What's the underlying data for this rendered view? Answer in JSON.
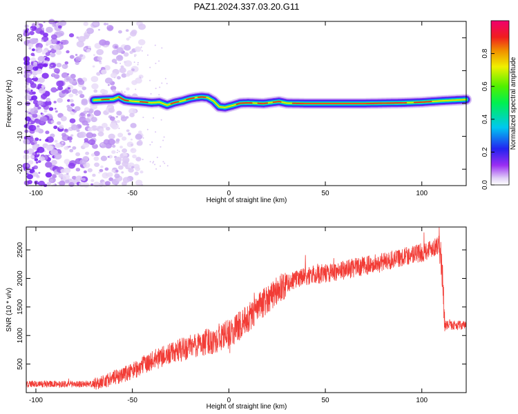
{
  "title": "PAZ1.2024.337.03.20.G11",
  "chart_data": [
    {
      "type": "heatmap",
      "xlabel": "Height of straight line (km)",
      "ylabel": "Frequency (Hz)",
      "xlim": [
        -105,
        123
      ],
      "ylim": [
        -25,
        25
      ],
      "xticks": [
        -100,
        -50,
        0,
        50,
        100
      ],
      "yticks": [
        -20,
        -10,
        0,
        10,
        20
      ],
      "grid": false,
      "colorbar": {
        "label": "Normalized spectral amplitude",
        "range": [
          0,
          1
        ],
        "ticks": [
          0.0,
          0.2,
          0.4,
          0.6,
          0.8
        ],
        "tick_labels": [
          "0.0",
          "0.2",
          "0.4",
          "0.6",
          "0.8"
        ],
        "colormap": "rainbow (white-violet-blue-cyan-green-yellow-orange-red-magenta)"
      },
      "ridge": {
        "x": [
          -70,
          -65,
          -60,
          -57,
          -54,
          -50,
          -45,
          -40,
          -36,
          -32,
          -28,
          -24,
          -20,
          -17,
          -14,
          -11,
          -8,
          -5,
          -2,
          2,
          6,
          10,
          14,
          18,
          22,
          26,
          30,
          40,
          50,
          60,
          70,
          80,
          90,
          100,
          110,
          123
        ],
        "freq": [
          1.0,
          1.2,
          1.3,
          2.0,
          1.0,
          0.7,
          0.5,
          0.2,
          0.4,
          -0.5,
          0.3,
          0.8,
          1.5,
          1.8,
          2.0,
          1.8,
          0.8,
          -1.0,
          -1.2,
          -0.6,
          0.1,
          0.2,
          0.1,
          0.0,
          0.3,
          0.6,
          0.1,
          0.0,
          0.0,
          0.0,
          0.0,
          0.1,
          0.2,
          0.4,
          0.8,
          1.2
        ]
      },
      "noise_region_x": [
        -105,
        -55
      ]
    },
    {
      "type": "line",
      "xlabel": "Height of straight line (km)",
      "ylabel": "SNR (10 * v/v)",
      "xlim": [
        -105,
        123
      ],
      "ylim": [
        0,
        2900
      ],
      "xticks": [
        -100,
        -50,
        0,
        50,
        100
      ],
      "yticks": [
        500,
        1000,
        1500,
        2000,
        2500
      ],
      "color": "#f23c36",
      "grid": false,
      "trend": {
        "x": [
          -105,
          -70,
          -60,
          -50,
          -40,
          -30,
          -20,
          -10,
          0,
          10,
          20,
          30,
          40,
          50,
          60,
          70,
          80,
          90,
          100,
          109,
          110.5,
          112,
          123
        ],
        "y": [
          150,
          150,
          250,
          380,
          560,
          680,
          800,
          900,
          1020,
          1300,
          1650,
          1920,
          2040,
          2090,
          2150,
          2220,
          2280,
          2380,
          2450,
          2600,
          2150,
          1180,
          1180
        ]
      }
    }
  ]
}
